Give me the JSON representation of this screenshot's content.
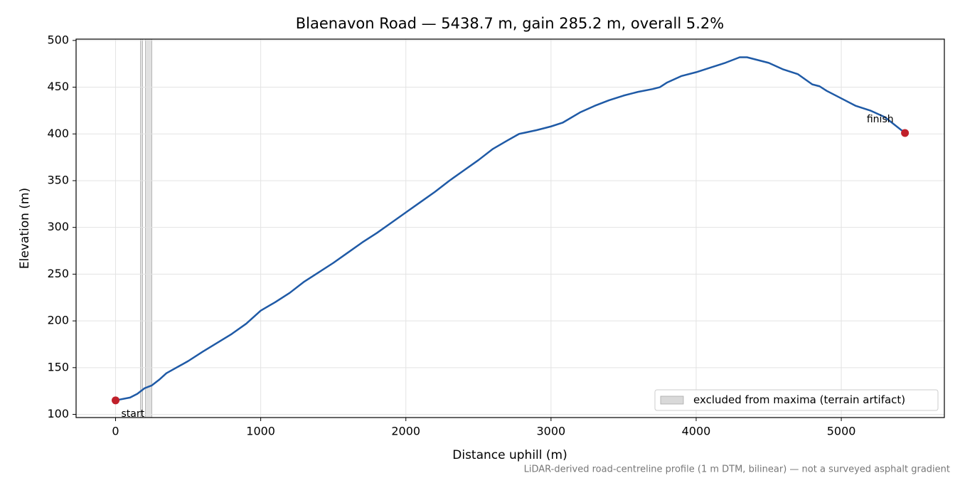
{
  "chart_data": {
    "type": "line",
    "title": "Blaenavon Road — 5438.7 m, gain 285.2 m, overall 5.2%",
    "xlabel": "Distance uphill (m)",
    "ylabel": "Elevation (m)",
    "note": "LiDAR-derived road-centreline profile (1 m DTM, bilinear) — not a surveyed asphalt gradient",
    "x": [
      0,
      100,
      150,
      200,
      250,
      300,
      350,
      500,
      600,
      800,
      900,
      1000,
      1100,
      1200,
      1300,
      1400,
      1500,
      1600,
      1700,
      1800,
      1900,
      2000,
      2100,
      2200,
      2300,
      2400,
      2500,
      2600,
      2700,
      2780,
      2900,
      3000,
      3080,
      3200,
      3300,
      3400,
      3500,
      3600,
      3700,
      3750,
      3800,
      3900,
      4000,
      4100,
      4200,
      4300,
      4350,
      4400,
      4500,
      4600,
      4700,
      4800,
      4850,
      4900,
      5000,
      5100,
      5200,
      5300,
      5438.7
    ],
    "series": [
      {
        "color": "#1f5aa6",
        "values": [
          115,
          118,
          122,
          128,
          131,
          137,
          144,
          157,
          167,
          186,
          197,
          211,
          220,
          230,
          242,
          252,
          262,
          273,
          284,
          294,
          305,
          316,
          327,
          338,
          350,
          361,
          372,
          384,
          393,
          400,
          404,
          408,
          412,
          423,
          430,
          436,
          441,
          445,
          448,
          450,
          455,
          462,
          466,
          471,
          476,
          482,
          482,
          480,
          476,
          469,
          464,
          453,
          451,
          446,
          438,
          430,
          425,
          418,
          401
        ]
      }
    ],
    "points": [
      {
        "x": 0,
        "y": 115,
        "label": "start"
      },
      {
        "x": 5438.7,
        "y": 401,
        "label": "finish"
      }
    ],
    "point_color": "#c0202a",
    "spans": [
      {
        "start": 172,
        "end": 186
      },
      {
        "start": 206,
        "end": 250
      }
    ],
    "span_label": "excluded from maxima (terrain artifact)",
    "span_color": "#d9d9d9",
    "legend": "lower right",
    "xlim": [
      -272,
      5710
    ],
    "ylim": [
      96.6,
      501.4
    ],
    "xticks": [
      0,
      1000,
      2000,
      3000,
      4000,
      5000
    ],
    "yticks": [
      100,
      150,
      200,
      250,
      300,
      350,
      400,
      450,
      500
    ],
    "grid": true
  }
}
